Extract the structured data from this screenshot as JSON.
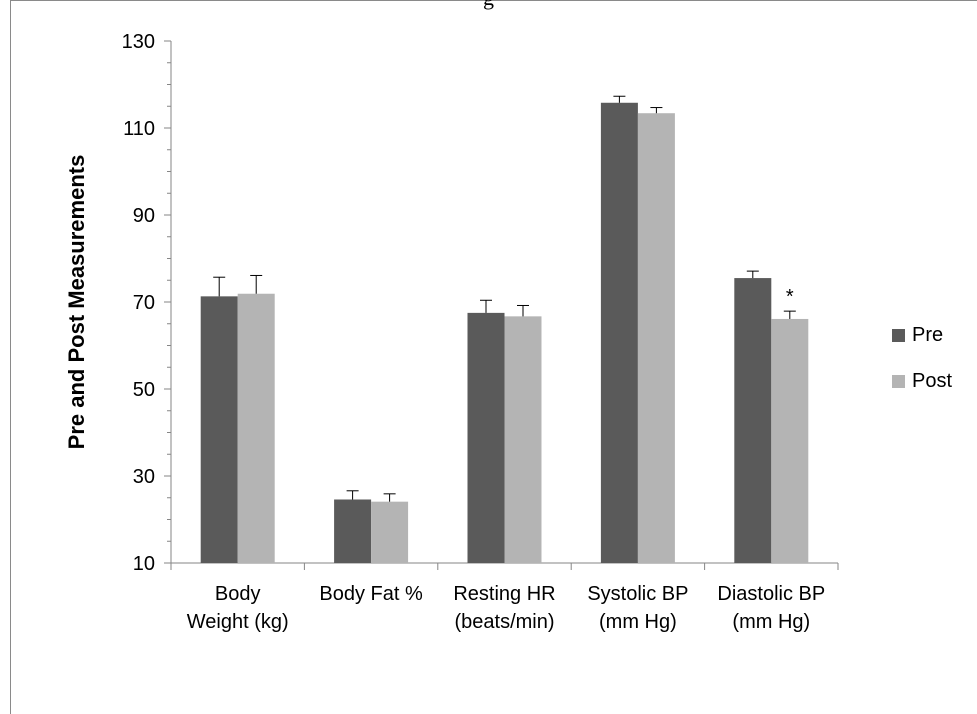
{
  "chart_data": {
    "type": "bar",
    "title": "",
    "ylabel": "Pre and Post Measurements",
    "xlabel": "",
    "ylim": [
      10,
      130
    ],
    "yticks": [
      10,
      30,
      50,
      70,
      90,
      110,
      130
    ],
    "categories": [
      [
        "Body",
        "Weight (kg)"
      ],
      [
        "Body Fat %"
      ],
      [
        "Resting HR",
        "(beats/min)"
      ],
      [
        "Systolic BP",
        "(mm Hg)"
      ],
      [
        "Diastolic BP",
        "(mm Hg)"
      ]
    ],
    "series": [
      {
        "name": "Pre",
        "color": "#5a5a5a",
        "values": [
          71.3,
          24.6,
          67.5,
          115.8,
          75.5
        ],
        "errors": [
          4.4,
          2.0,
          2.9,
          1.5,
          1.6
        ]
      },
      {
        "name": "Post",
        "color": "#b4b4b4",
        "values": [
          71.9,
          24.1,
          66.7,
          113.4,
          66.1
        ],
        "errors": [
          4.2,
          1.8,
          2.5,
          1.3,
          1.8
        ]
      }
    ],
    "annotations": [
      {
        "text": "*",
        "category_index": 4,
        "series_index": 1
      }
    ],
    "legend_position": "right",
    "grid": false
  }
}
